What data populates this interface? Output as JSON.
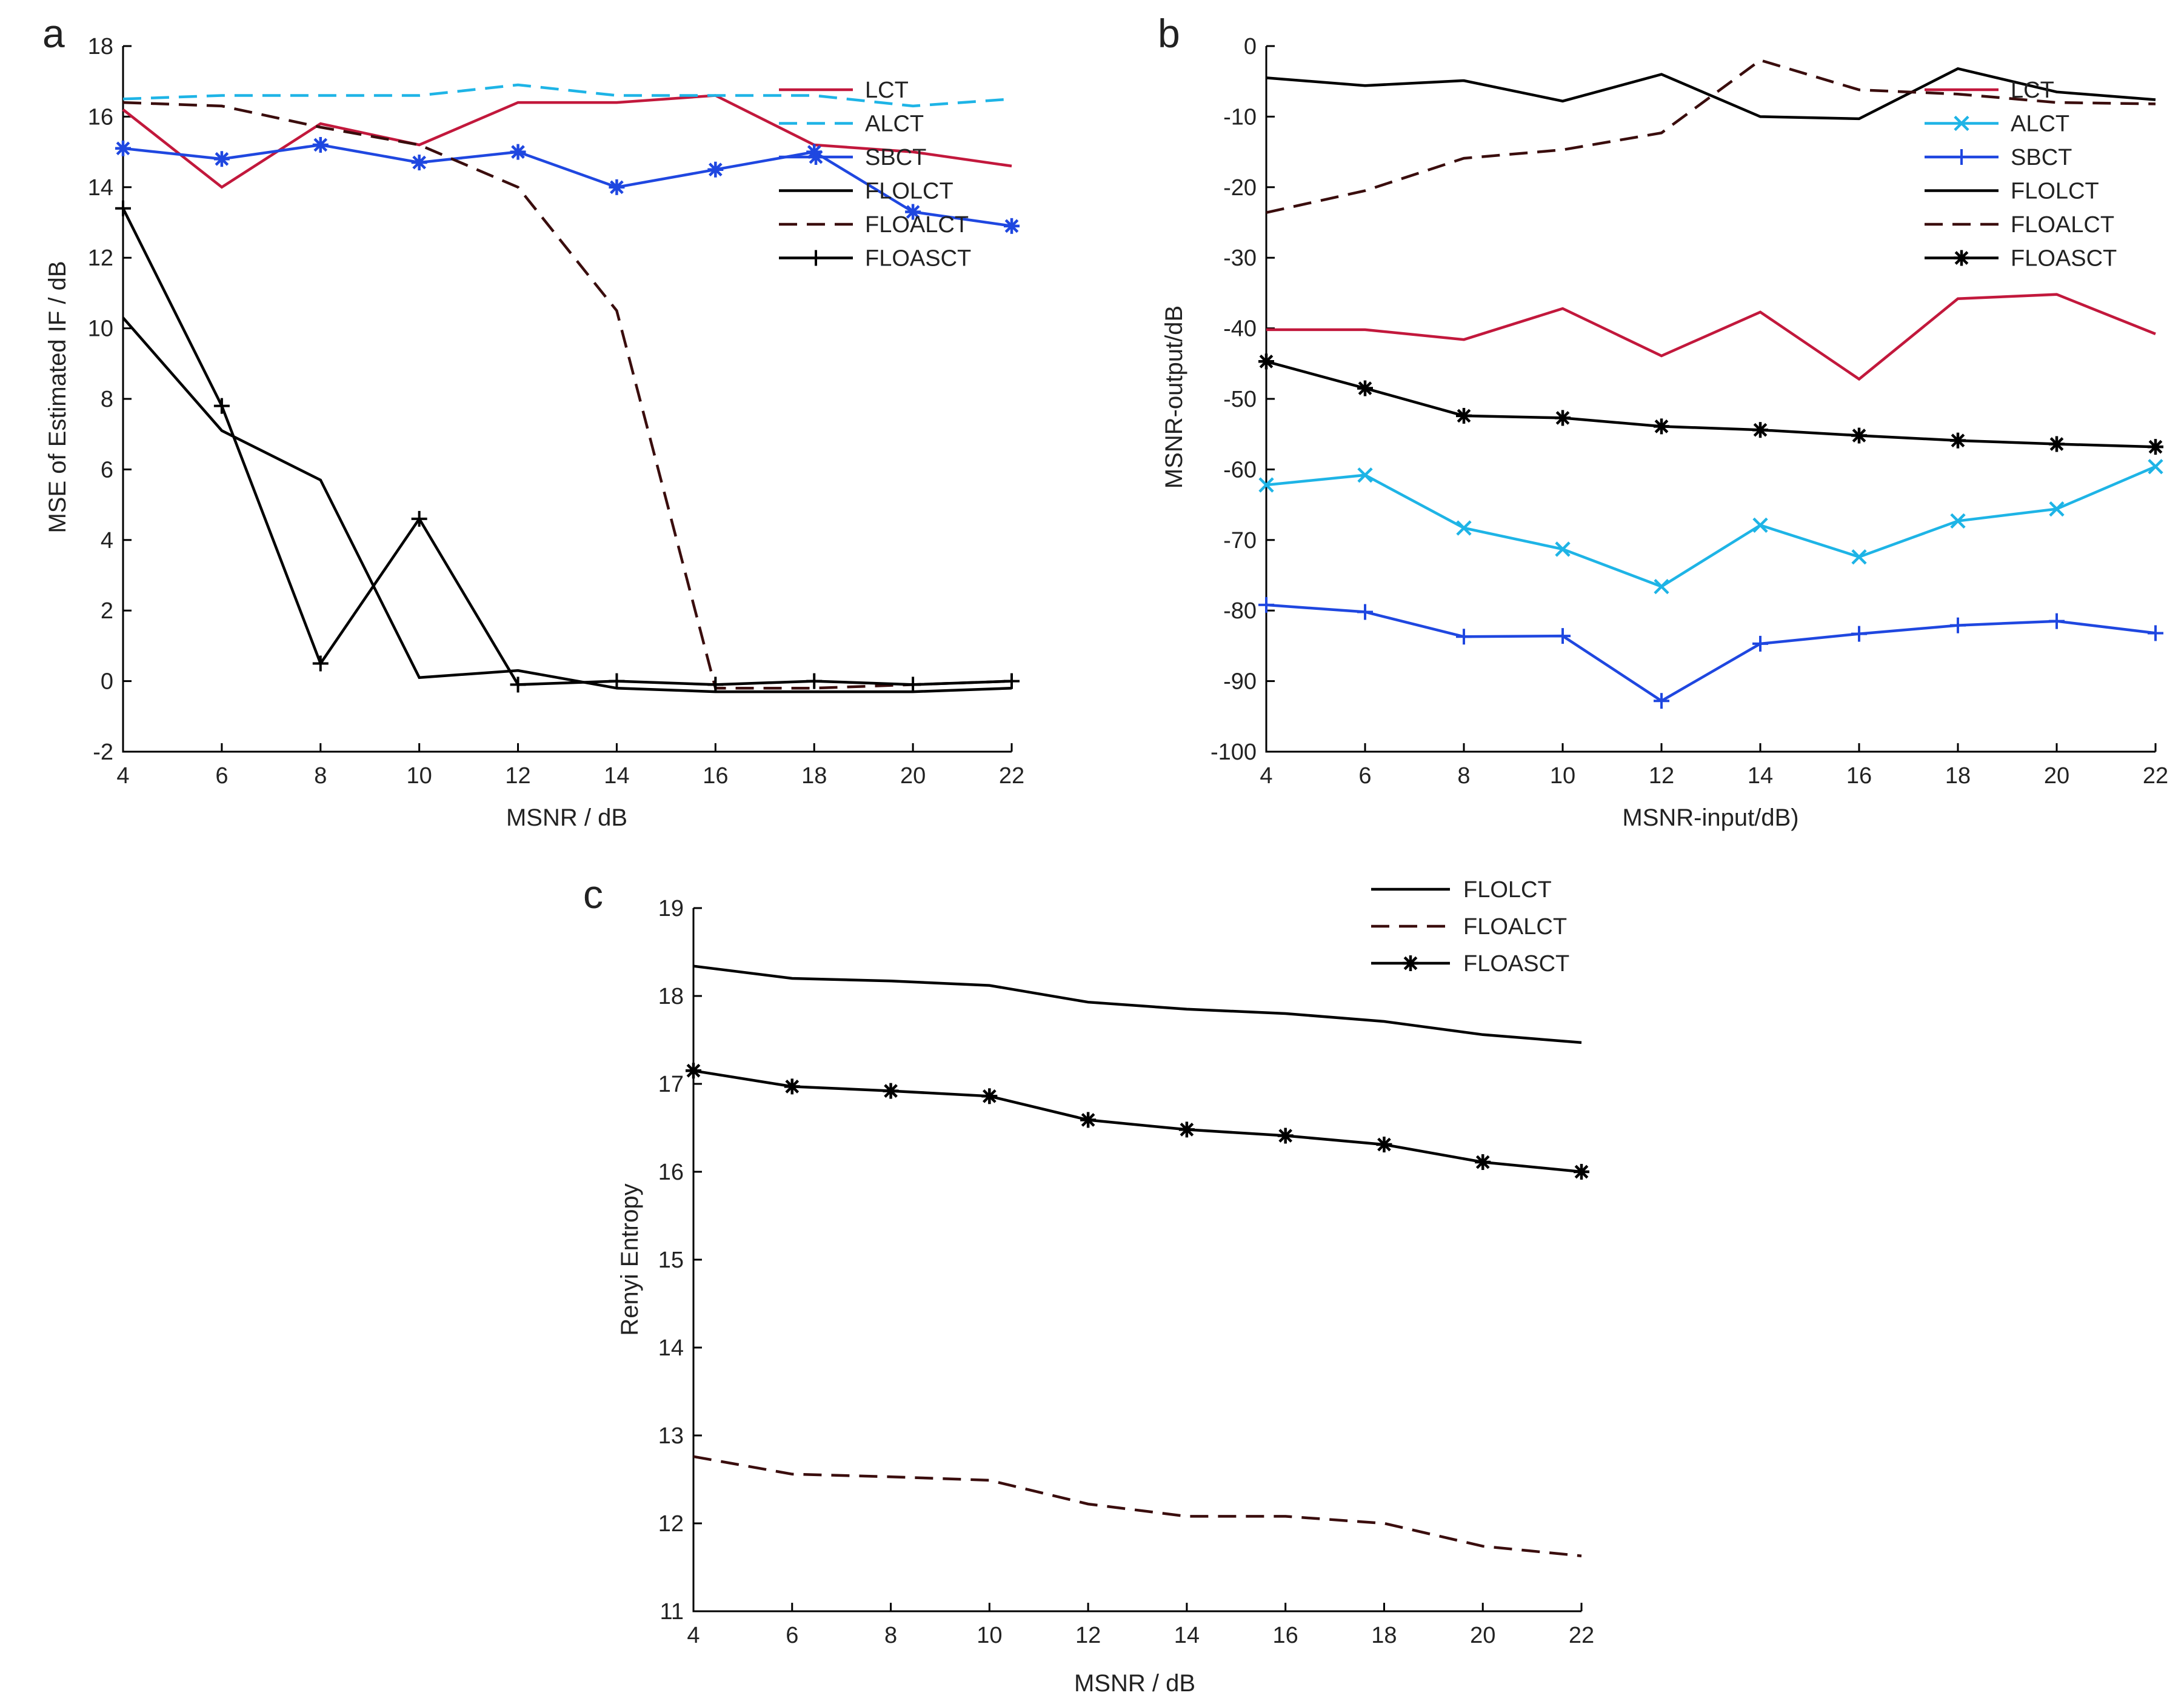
{
  "chart_data": [
    {
      "type": "line",
      "panel": "a",
      "title": "",
      "xlabel": "MSNR / dB",
      "ylabel": "MSE of Estimated IF / dB",
      "xlim": [
        4,
        22
      ],
      "ylim": [
        -2,
        18
      ],
      "xticks": [
        4,
        6,
        8,
        10,
        12,
        14,
        16,
        18,
        20,
        22
      ],
      "yticks": [
        -2,
        0,
        2,
        4,
        6,
        8,
        10,
        12,
        14,
        16,
        18
      ],
      "grid": false,
      "legend_position": "top-right",
      "series": [
        {
          "name": "LCT",
          "color": "#c2183c",
          "dash": "solid",
          "marker": "none",
          "x": [
            4,
            6,
            8,
            10,
            12,
            14,
            16,
            18,
            20,
            22
          ],
          "values": [
            16.2,
            14.0,
            15.8,
            15.2,
            16.4,
            16.4,
            16.6,
            15.2,
            15.0,
            14.6
          ]
        },
        {
          "name": "ALCT",
          "color": "#1eb4e6",
          "dash": "dashed",
          "marker": "none",
          "x": [
            4,
            6,
            8,
            10,
            12,
            14,
            16,
            18,
            20,
            22
          ],
          "values": [
            16.5,
            16.6,
            16.6,
            16.6,
            16.9,
            16.6,
            16.6,
            16.6,
            16.3,
            16.5
          ]
        },
        {
          "name": "SBCT",
          "color": "#1f47e0",
          "dash": "solid",
          "marker": "asterisk",
          "x": [
            4,
            6,
            8,
            10,
            12,
            14,
            16,
            18,
            20,
            22
          ],
          "values": [
            15.1,
            14.8,
            15.2,
            14.7,
            15.0,
            14.0,
            14.5,
            15.0,
            13.3,
            12.9
          ]
        },
        {
          "name": "FLOLCT",
          "color": "#000000",
          "dash": "solid",
          "marker": "none",
          "x": [
            4,
            6,
            8,
            10,
            12,
            14,
            16,
            18,
            20,
            22
          ],
          "values": [
            10.3,
            7.1,
            5.7,
            0.1,
            0.3,
            -0.2,
            -0.3,
            -0.3,
            -0.3,
            -0.2
          ]
        },
        {
          "name": "FLOALCT",
          "color": "#3a0d0d",
          "dash": "dashed",
          "marker": "none",
          "x": [
            4,
            6,
            8,
            10,
            12,
            14,
            16,
            18,
            20,
            22
          ],
          "values": [
            16.4,
            16.3,
            15.7,
            15.2,
            14.0,
            10.5,
            -0.2,
            -0.2,
            -0.1,
            0.0
          ]
        },
        {
          "name": "FLOASCT",
          "color": "#000000",
          "dash": "solid",
          "marker": "plus",
          "x": [
            4,
            6,
            8,
            10,
            12,
            14,
            16,
            18,
            20,
            22
          ],
          "values": [
            13.4,
            7.8,
            0.5,
            4.6,
            -0.1,
            0.0,
            -0.1,
            0.0,
            -0.1,
            0.0
          ]
        }
      ]
    },
    {
      "type": "line",
      "panel": "b",
      "title": "",
      "xlabel": "MSNR-input/dB)",
      "ylabel": "MSNR-output/dB",
      "xlim": [
        4,
        22
      ],
      "ylim": [
        -100,
        0
      ],
      "xticks": [
        4,
        6,
        8,
        10,
        12,
        14,
        16,
        18,
        20,
        22
      ],
      "yticks": [
        -100,
        -90,
        -80,
        -70,
        -60,
        -50,
        -40,
        -30,
        -20,
        -10,
        0
      ],
      "grid": false,
      "legend_position": "top-right",
      "series": [
        {
          "name": "LCT",
          "color": "#c2183c",
          "dash": "solid",
          "marker": "none",
          "x": [
            4,
            6,
            8,
            10,
            12,
            14,
            16,
            18,
            20,
            22
          ],
          "values": [
            -40.2,
            -40.2,
            -41.6,
            -37.2,
            -43.9,
            -37.7,
            -47.2,
            -35.8,
            -35.2,
            -40.8
          ]
        },
        {
          "name": "ALCT",
          "color": "#1eb4e6",
          "dash": "solid",
          "marker": "x",
          "x": [
            4,
            6,
            8,
            10,
            12,
            14,
            16,
            18,
            20,
            22
          ],
          "values": [
            -62.2,
            -60.8,
            -68.3,
            -71.3,
            -76.6,
            -67.9,
            -72.4,
            -67.3,
            -65.6,
            -59.6
          ]
        },
        {
          "name": "SBCT",
          "color": "#1f47e0",
          "dash": "solid",
          "marker": "plus",
          "x": [
            4,
            6,
            8,
            10,
            12,
            14,
            16,
            18,
            20,
            22
          ],
          "values": [
            -79.2,
            -80.2,
            -83.7,
            -83.6,
            -92.8,
            -84.7,
            -83.3,
            -82.1,
            -81.5,
            -83.2
          ]
        },
        {
          "name": "FLOLCT",
          "color": "#000000",
          "dash": "solid",
          "marker": "none",
          "x": [
            4,
            6,
            8,
            10,
            12,
            14,
            16,
            18,
            20,
            22
          ],
          "values": [
            -4.5,
            -5.6,
            -4.9,
            -7.8,
            -4.0,
            -10.0,
            -10.3,
            -3.2,
            -6.5,
            -7.6
          ]
        },
        {
          "name": "FLOALCT",
          "color": "#3a0d0d",
          "dash": "dashed",
          "marker": "none",
          "x": [
            4,
            6,
            8,
            10,
            12,
            14,
            16,
            18,
            20,
            22
          ],
          "values": [
            -23.6,
            -20.5,
            -15.9,
            -14.7,
            -12.3,
            -2.0,
            -6.2,
            -6.8,
            -8.0,
            -8.2
          ]
        },
        {
          "name": "FLOASCT",
          "color": "#000000",
          "dash": "solid",
          "marker": "asterisk",
          "x": [
            4,
            6,
            8,
            10,
            12,
            14,
            16,
            18,
            20,
            22
          ],
          "values": [
            -44.7,
            -48.5,
            -52.4,
            -52.7,
            -53.9,
            -54.4,
            -55.2,
            -55.9,
            -56.4,
            -56.8
          ]
        }
      ]
    },
    {
      "type": "line",
      "panel": "c",
      "title": "",
      "xlabel": "MSNR / dB",
      "ylabel": "Renyi Entropy",
      "xlim": [
        4,
        22
      ],
      "ylim": [
        11,
        19
      ],
      "xticks": [
        4,
        6,
        8,
        10,
        12,
        14,
        16,
        18,
        20,
        22
      ],
      "yticks": [
        11,
        12,
        13,
        14,
        15,
        16,
        17,
        18,
        19
      ],
      "grid": false,
      "legend_position": "top-right-outside",
      "series": [
        {
          "name": "FLOLCT",
          "color": "#000000",
          "dash": "solid",
          "marker": "none",
          "x": [
            4,
            6,
            8,
            10,
            12,
            14,
            16,
            18,
            20,
            22
          ],
          "values": [
            18.34,
            18.2,
            18.17,
            18.12,
            17.93,
            17.85,
            17.8,
            17.71,
            17.56,
            17.47
          ]
        },
        {
          "name": "FLOALCT",
          "color": "#3a0d0d",
          "dash": "dashed",
          "marker": "none",
          "x": [
            4,
            6,
            8,
            10,
            12,
            14,
            16,
            18,
            20,
            22
          ],
          "values": [
            12.76,
            12.56,
            12.53,
            12.49,
            12.22,
            12.08,
            12.08,
            12.0,
            11.74,
            11.63
          ]
        },
        {
          "name": "FLOASCT",
          "color": "#000000",
          "dash": "solid",
          "marker": "asterisk",
          "x": [
            4,
            6,
            8,
            10,
            12,
            14,
            16,
            18,
            20,
            22
          ],
          "values": [
            17.15,
            16.97,
            16.92,
            16.86,
            16.59,
            16.48,
            16.41,
            16.31,
            16.11,
            16.0
          ]
        }
      ]
    }
  ]
}
